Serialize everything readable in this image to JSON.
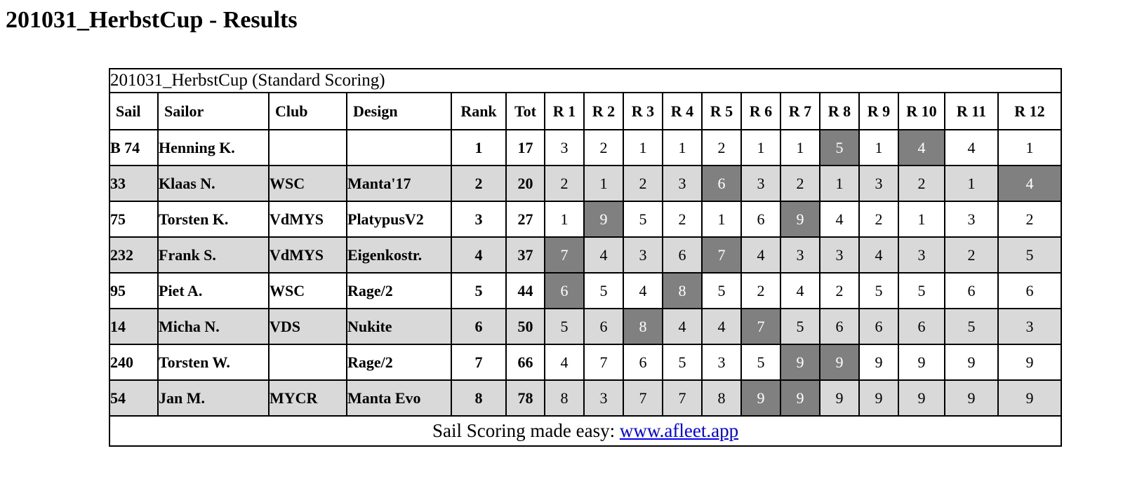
{
  "page": {
    "title": "201031_HerbstCup - Results"
  },
  "table": {
    "caption": "201031_HerbstCup (Standard Scoring)",
    "columns": [
      "Sail",
      "Sailor",
      "Club",
      "Design",
      "Rank",
      "Tot",
      "R 1",
      "R 2",
      "R 3",
      "R 4",
      "R 5",
      "R 6",
      "R 7",
      "R 8",
      "R 9",
      "R 10",
      "R 11",
      "R 12"
    ],
    "rows": [
      {
        "sail": "B 74",
        "sailor": "Henning K.",
        "club": "",
        "design": "",
        "rank": "1",
        "tot": "17",
        "races": [
          "3",
          "2",
          "1",
          "1",
          "2",
          "1",
          "1",
          "5",
          "1",
          "4",
          "4",
          "1"
        ],
        "discards": [
          7,
          9
        ]
      },
      {
        "sail": "33",
        "sailor": "Klaas N.",
        "club": "WSC",
        "design": "Manta'17",
        "rank": "2",
        "tot": "20",
        "races": [
          "2",
          "1",
          "2",
          "3",
          "6",
          "3",
          "2",
          "1",
          "3",
          "2",
          "1",
          "4"
        ],
        "discards": [
          4,
          11
        ]
      },
      {
        "sail": "75",
        "sailor": "Torsten K.",
        "club": "VdMYS",
        "design": "PlatypusV2",
        "rank": "3",
        "tot": "27",
        "races": [
          "1",
          "9",
          "5",
          "2",
          "1",
          "6",
          "9",
          "4",
          "2",
          "1",
          "3",
          "2"
        ],
        "discards": [
          1,
          6
        ]
      },
      {
        "sail": "232",
        "sailor": "Frank S.",
        "club": "VdMYS",
        "design": "Eigenkostr.",
        "rank": "4",
        "tot": "37",
        "races": [
          "7",
          "4",
          "3",
          "6",
          "7",
          "4",
          "3",
          "3",
          "4",
          "3",
          "2",
          "5"
        ],
        "discards": [
          0,
          4
        ]
      },
      {
        "sail": "95",
        "sailor": "Piet A.",
        "club": "WSC",
        "design": "Rage/2",
        "rank": "5",
        "tot": "44",
        "races": [
          "6",
          "5",
          "4",
          "8",
          "5",
          "2",
          "4",
          "2",
          "5",
          "5",
          "6",
          "6"
        ],
        "discards": [
          0,
          3
        ]
      },
      {
        "sail": "14",
        "sailor": "Micha N.",
        "club": "VDS",
        "design": "Nukite",
        "rank": "6",
        "tot": "50",
        "races": [
          "5",
          "6",
          "8",
          "4",
          "4",
          "7",
          "5",
          "6",
          "6",
          "6",
          "5",
          "3"
        ],
        "discards": [
          2,
          5
        ]
      },
      {
        "sail": "240",
        "sailor": "Torsten W.",
        "club": "",
        "design": "Rage/2",
        "rank": "7",
        "tot": "66",
        "races": [
          "4",
          "7",
          "6",
          "5",
          "3",
          "5",
          "9",
          "9",
          "9",
          "9",
          "9",
          "9"
        ],
        "discards": [
          6,
          7
        ]
      },
      {
        "sail": "54",
        "sailor": "Jan M.",
        "club": "MYCR",
        "design": "Manta Evo",
        "rank": "8",
        "tot": "78",
        "races": [
          "8",
          "3",
          "7",
          "7",
          "8",
          "9",
          "9",
          "9",
          "9",
          "9",
          "9",
          "9"
        ],
        "discards": [
          5,
          6
        ]
      }
    ],
    "footer": {
      "text": "Sail Scoring made easy: ",
      "link_label": "www.afleet.app"
    }
  },
  "colors": {
    "shaded_row": "#d9d9d9",
    "discard_bg": "#808080",
    "discard_text": "#ffffff",
    "link": "#0000ee",
    "border": "#000000"
  }
}
